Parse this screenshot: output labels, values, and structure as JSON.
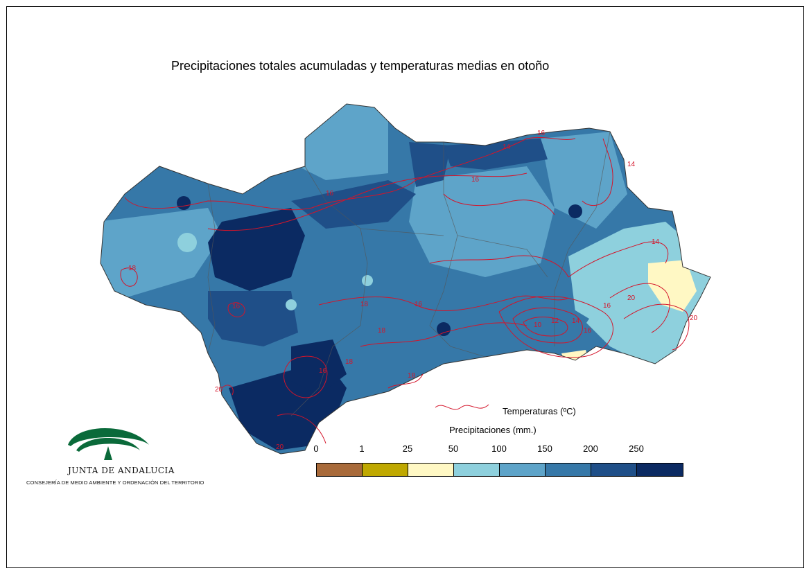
{
  "title": "Precipitaciones totales acumuladas y temperaturas medias en otoño",
  "legend": {
    "temperature_label": "Temperaturas (ºC)",
    "precipitation_label": "Precipitaciones (mm.)",
    "bin_labels": [
      "0",
      "1",
      "25",
      "50",
      "100",
      "150",
      "200",
      "250"
    ],
    "bin_colors": [
      "#a86a3a",
      "#bfa800",
      "#fff8c4",
      "#8ed0dd",
      "#5ea4c9",
      "#3678a8",
      "#1f4f88",
      "#0b2a62"
    ]
  },
  "isotherm_color": "#d4142a",
  "isotherm_labels": [
    "16",
    "14",
    "16",
    "14",
    "16",
    "18",
    "16",
    "18",
    "16",
    "18",
    "14",
    "16",
    "20",
    "10",
    "12",
    "14",
    "16",
    "18",
    "16",
    "18",
    "20",
    "20",
    "20"
  ],
  "logo": {
    "name": "JUNTA DE ANDALUCIA",
    "subtitle": "CONSEJERÍA DE MEDIO AMBIENTE Y ORDENACIÓN DEL TERRITORIO"
  }
}
